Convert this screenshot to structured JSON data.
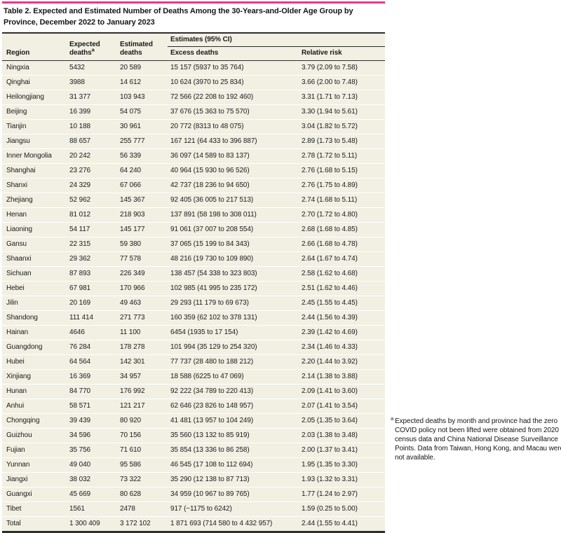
{
  "colors": {
    "accent_pink": "#e8398d",
    "row_beige": "#f2efe3",
    "rule_dark": "#2d2d2d"
  },
  "table": {
    "title": "Table 2. Expected and Estimated Number of Deaths Among the 30-Years-and-Older Age Group by Province, December 2022 to January 2023",
    "columns": {
      "region": "Region",
      "expected": "Expected deaths",
      "estimated": "Estimated deaths",
      "estimates_group": "Estimates (95% CI)",
      "excess": "Excess deaths",
      "relative": "Relative risk"
    },
    "rows": [
      {
        "region": "Ningxia",
        "expected": "5432",
        "estimated": "20 589",
        "excess": "15 157 (5937 to 35 764)",
        "relative": "3.79 (2.09 to 7.58)"
      },
      {
        "region": "Qinghai",
        "expected": "3988",
        "estimated": "14 612",
        "excess": "10 624 (3970 to 25 834)",
        "relative": "3.66 (2.00 to 7.48)"
      },
      {
        "region": "Heilongjiang",
        "expected": "31 377",
        "estimated": "103 943",
        "excess": "72 566 (22 208 to 192 460)",
        "relative": "3.31 (1.71 to 7.13)"
      },
      {
        "region": "Beijing",
        "expected": "16 399",
        "estimated": "54 075",
        "excess": "37 676 (15 363 to 75 570)",
        "relative": "3.30 (1.94 to 5.61)"
      },
      {
        "region": "Tianjin",
        "expected": "10 188",
        "estimated": "30 961",
        "excess": "20 772 (8313 to 48 075)",
        "relative": "3.04 (1.82 to 5.72)"
      },
      {
        "region": "Jiangsu",
        "expected": "88 657",
        "estimated": "255 777",
        "excess": "167 121 (64 433 to 396 887)",
        "relative": "2.89 (1.73 to 5.48)"
      },
      {
        "region": "Inner Mongolia",
        "expected": "20 242",
        "estimated": "56 339",
        "excess": "36 097 (14 589 to 83 137)",
        "relative": "2.78 (1.72 to 5.11)"
      },
      {
        "region": "Shanghai",
        "expected": "23 276",
        "estimated": "64 240",
        "excess": "40 964 (15 930 to 96 526)",
        "relative": "2.76 (1.68 to 5.15)"
      },
      {
        "region": "Shanxi",
        "expected": "24 329",
        "estimated": "67 066",
        "excess": "42 737 (18 236 to 94 650)",
        "relative": "2.76 (1.75 to 4.89)"
      },
      {
        "region": "Zhejiang",
        "expected": "52 962",
        "estimated": "145 367",
        "excess": "92 405 (36 005 to 217 513)",
        "relative": "2.74 (1.68 to 5.11)"
      },
      {
        "region": "Henan",
        "expected": "81 012",
        "estimated": "218 903",
        "excess": "137 891 (58 198 to 308 011)",
        "relative": "2.70 (1.72 to 4.80)"
      },
      {
        "region": "Liaoning",
        "expected": "54 117",
        "estimated": "145 177",
        "excess": "91 061 (37 007 to 208 554)",
        "relative": "2.68 (1.68 to 4.85)"
      },
      {
        "region": "Gansu",
        "expected": "22 315",
        "estimated": "59 380",
        "excess": "37 065 (15 199 to 84 343)",
        "relative": "2.66 (1.68 to 4.78)"
      },
      {
        "region": "Shaanxi",
        "expected": "29 362",
        "estimated": "77 578",
        "excess": "48 216 (19 730 to 109 890)",
        "relative": "2.64 (1.67 to 4.74)"
      },
      {
        "region": "Sichuan",
        "expected": "87 893",
        "estimated": "226 349",
        "excess": "138 457 (54 338 to 323 803)",
        "relative": "2.58 (1.62 to 4.68)"
      },
      {
        "region": "Hebei",
        "expected": "67 981",
        "estimated": "170 966",
        "excess": "102 985 (41 995 to 235 172)",
        "relative": "2.51 (1.62 to 4.46)"
      },
      {
        "region": "Jilin",
        "expected": "20 169",
        "estimated": "49 463",
        "excess": "29 293 (11 179 to 69 673)",
        "relative": "2.45 (1.55 to 4.45)"
      },
      {
        "region": "Shandong",
        "expected": "111 414",
        "estimated": "271 773",
        "excess": "160 359 (62 102 to 378 131)",
        "relative": "2.44 (1.56 to 4.39)"
      },
      {
        "region": "Hainan",
        "expected": "4646",
        "estimated": "11 100",
        "excess": "6454 (1935 to 17 154)",
        "relative": "2.39 (1.42 to 4.69)"
      },
      {
        "region": "Guangdong",
        "expected": "76 284",
        "estimated": "178 278",
        "excess": "101 994 (35 129 to 254 320)",
        "relative": "2.34 (1.46 to 4.33)"
      },
      {
        "region": "Hubei",
        "expected": "64 564",
        "estimated": "142 301",
        "excess": "77 737 (28 480 to 188 212)",
        "relative": "2.20 (1.44 to 3.92)"
      },
      {
        "region": "Xinjiang",
        "expected": "16 369",
        "estimated": "34 957",
        "excess": "18 588 (6225 to 47 069)",
        "relative": "2.14 (1.38 to 3.88)"
      },
      {
        "region": "Hunan",
        "expected": "84 770",
        "estimated": "176 992",
        "excess": "92 222 (34 789 to 220 413)",
        "relative": "2.09 (1.41 to 3.60)"
      },
      {
        "region": "Anhui",
        "expected": "58 571",
        "estimated": "121 217",
        "excess": "62 646 (23 826 to 148 957)",
        "relative": "2.07 (1.41 to 3.54)"
      },
      {
        "region": "Chongqing",
        "expected": "39 439",
        "estimated": "80 920",
        "excess": "41 481 (13 957 to 104 249)",
        "relative": "2.05 (1.35 to 3.64)"
      },
      {
        "region": "Guizhou",
        "expected": "34 596",
        "estimated": "70 156",
        "excess": "35 560 (13 132 to 85 919)",
        "relative": "2.03 (1.38 to 3.48)"
      },
      {
        "region": "Fujian",
        "expected": "35 756",
        "estimated": "71 610",
        "excess": "35 854 (13 336 to 86 258)",
        "relative": "2.00 (1.37 to 3.41)"
      },
      {
        "region": "Yunnan",
        "expected": "49 040",
        "estimated": "95 586",
        "excess": "46 545 (17 108 to 112 694)",
        "relative": "1.95 (1.35 to 3.30)"
      },
      {
        "region": "Jiangxi",
        "expected": "38 032",
        "estimated": "73 322",
        "excess": "35 290 (12 138 to 87 713)",
        "relative": "1.93 (1.32 to 3.31)"
      },
      {
        "region": "Guangxi",
        "expected": "45 669",
        "estimated": "80 628",
        "excess": "34 959 (10 967 to 89 765)",
        "relative": "1.77 (1.24 to 2.97)"
      },
      {
        "region": "Tibet",
        "expected": "1561",
        "estimated": "2478",
        "excess": "917 (−1175 to 6242)",
        "relative": "1.59 (0.25 to 5.00)"
      }
    ],
    "total": {
      "region": "Total",
      "expected": "1 300 409",
      "estimated": "3 172 102",
      "excess": "1 871 693 (714 580 to 4 432 957)",
      "relative": "2.44 (1.55 to 4.41)"
    }
  },
  "footnote": {
    "marker": "a",
    "text": "Expected deaths by month and province had the zero COVID policy not been lifted were obtained from 2020 census data and China National Disease Surveillance Points. Data from Taiwan, Hong Kong, and Macau were not available."
  }
}
